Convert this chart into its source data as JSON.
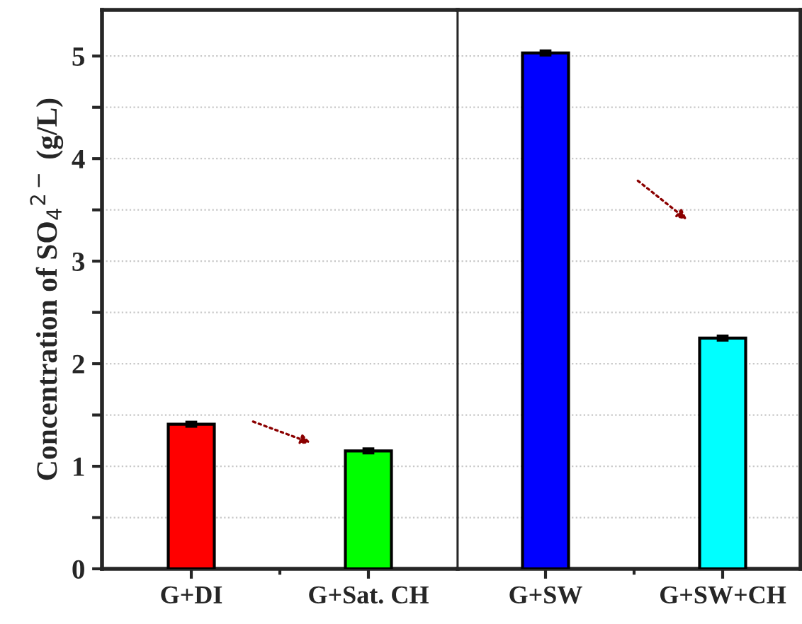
{
  "chart_data": [
    {
      "type": "bar",
      "ylabel": "Concentration of SO$_{4}$$^{2−}$ (g/L)",
      "categories": [
        "G+DI",
        "G+Sat. CH"
      ],
      "values": [
        1.41,
        1.15
      ],
      "errors": [
        0.02,
        0.02
      ],
      "colors": [
        "#ff0000",
        "#00ff00"
      ],
      "ylim": [
        0,
        5.45
      ],
      "yticks": [
        0,
        {
          "value": 0.5,
          "label": null
        },
        1,
        {
          "value": 1.5,
          "label": null
        },
        2,
        {
          "value": 2.5,
          "label": null
        },
        3,
        {
          "value": 3.5,
          "label": null
        },
        4,
        {
          "value": 4.5,
          "label": null
        },
        5
      ],
      "grid": "y"
    },
    {
      "type": "bar",
      "categories": [
        "G+SW",
        "G+SW+CH"
      ],
      "values": [
        5.03,
        2.25
      ],
      "errors": [
        0.02,
        0.02
      ],
      "colors": [
        "#0000ff",
        "#00ffff"
      ],
      "ylim": [
        0,
        5.45
      ],
      "yticks": [
        0,
        {
          "value": 0.5,
          "label": null
        },
        1,
        {
          "value": 1.5,
          "label": null
        },
        2,
        {
          "value": 2.5,
          "label": null
        },
        3,
        {
          "value": 3.5,
          "label": null
        },
        4,
        {
          "value": 4.5,
          "label": null
        },
        5
      ],
      "tick_labels": "x",
      "grid": "y"
    }
  ]
}
